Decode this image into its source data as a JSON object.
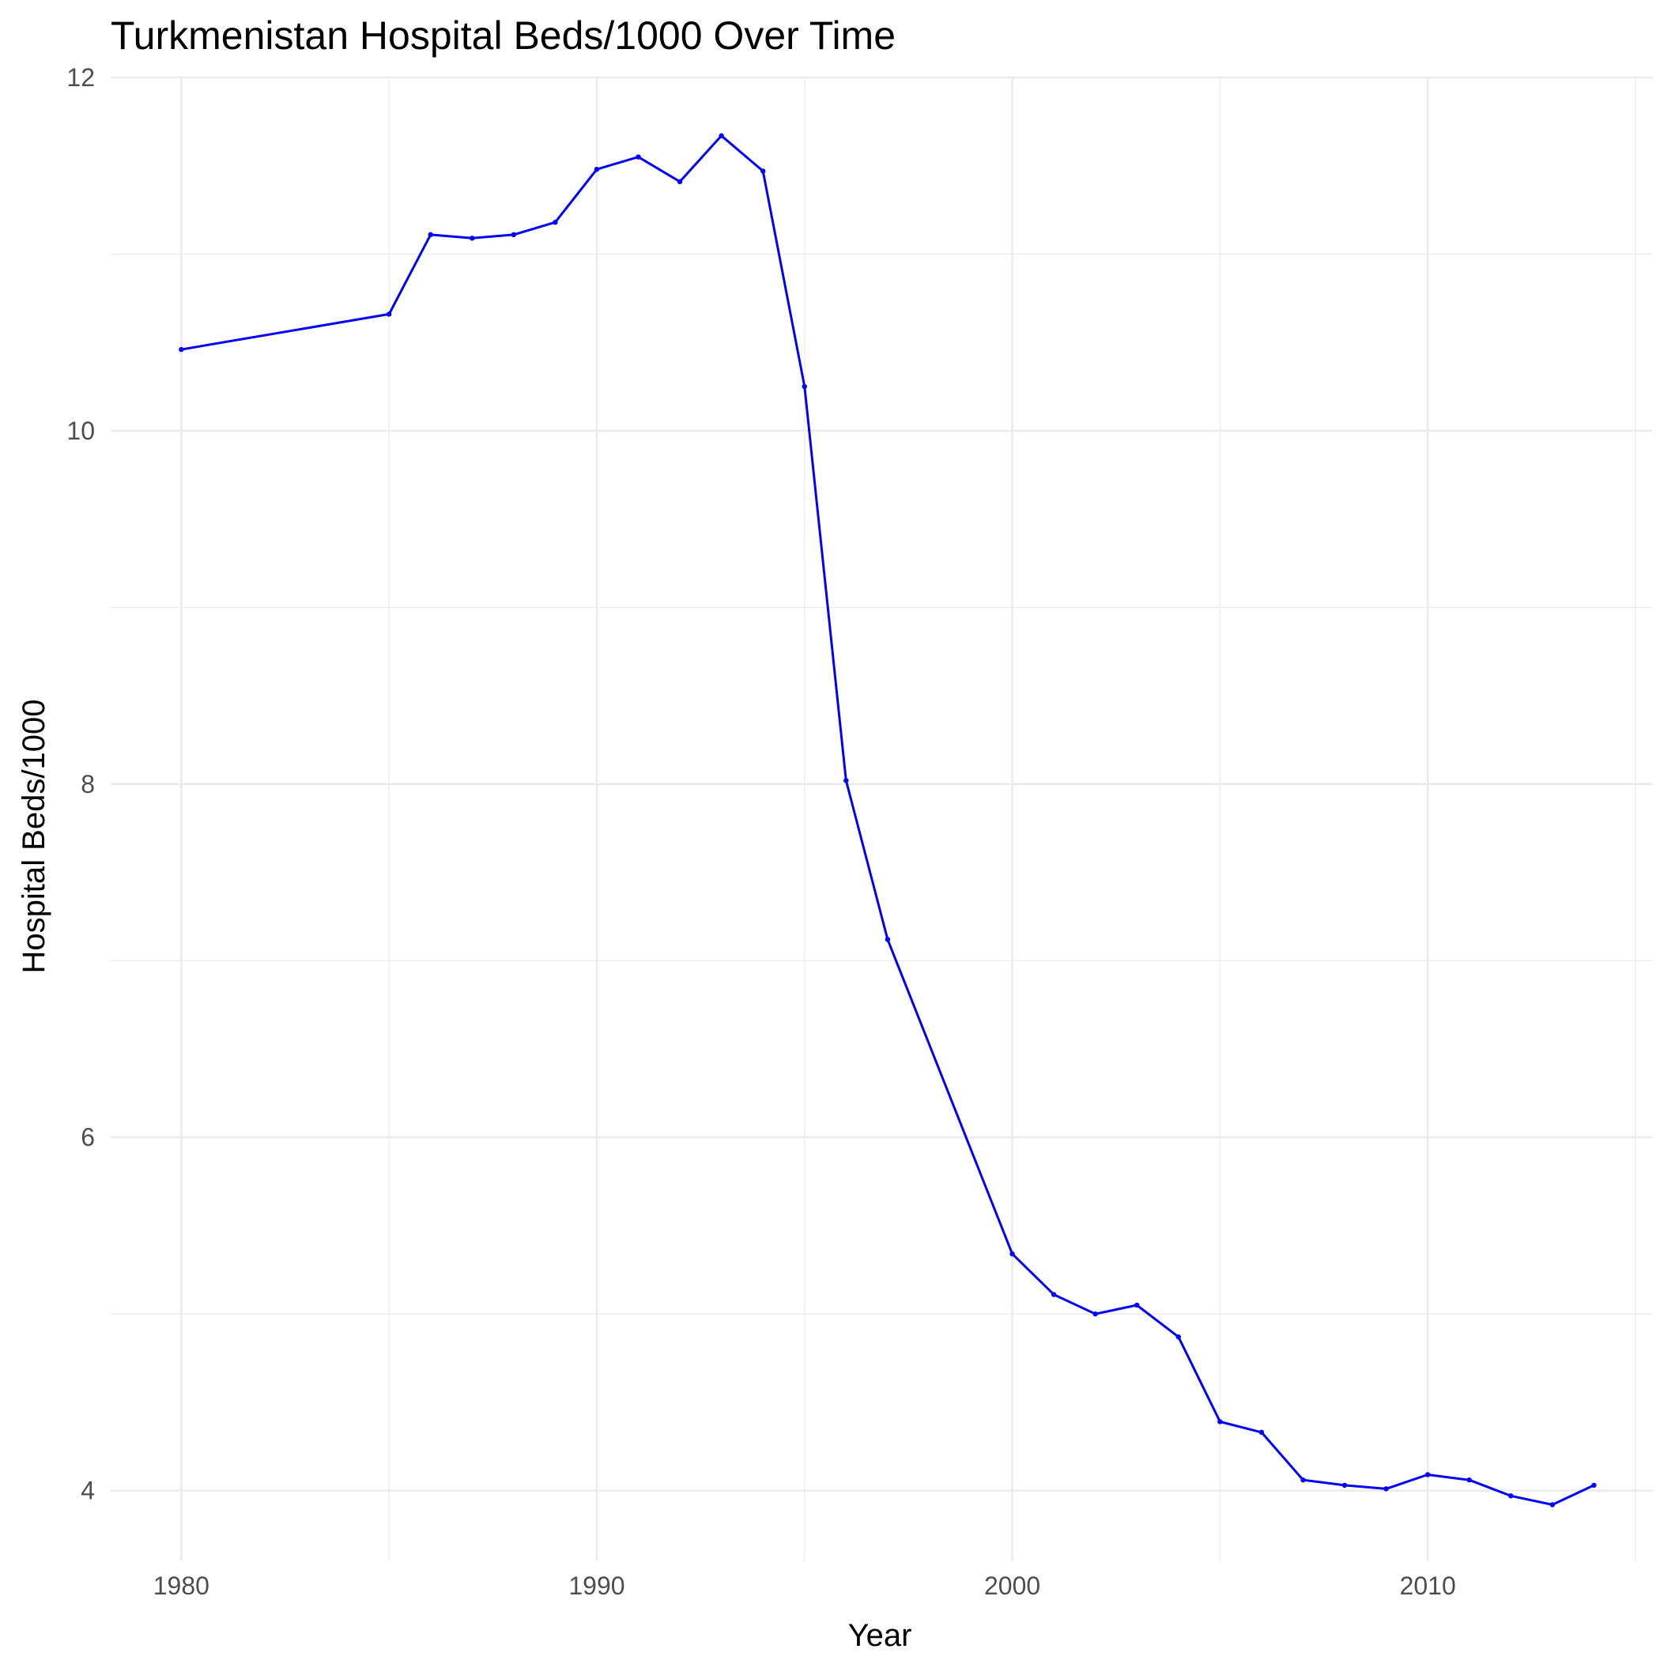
{
  "chart_data": {
    "type": "line",
    "title": "Turkmenistan Hospital Beds/1000 Over Time",
    "xlabel": "Year",
    "ylabel": "Hospital Beds/1000",
    "xlim": [
      1978.3,
      2015.4
    ],
    "ylim": [
      3.6,
      12.0
    ],
    "x_ticks": [
      1980,
      1990,
      2000,
      2010
    ],
    "x_tick_labels": [
      "1980",
      "1990",
      "2000",
      "2010"
    ],
    "x_minor_ticks": [
      1985,
      1995,
      2005,
      2015
    ],
    "y_ticks": [
      4,
      6,
      8,
      10,
      12
    ],
    "y_tick_labels": [
      "4",
      "6",
      "8",
      "10",
      "12"
    ],
    "y_minor_ticks": [
      5,
      7,
      9,
      11
    ],
    "grid": true,
    "legend": "none",
    "line_color": "#0000ff",
    "series": [
      {
        "x": [
          1980,
          1985,
          1986,
          1987,
          1988,
          1989,
          1990,
          1991,
          1992,
          1993,
          1994,
          1995,
          1996,
          1997,
          2000,
          2001,
          2002,
          2003,
          2004,
          2005,
          2006,
          2007,
          2008,
          2009,
          2010,
          2011,
          2012,
          2013,
          2014
        ],
        "y": [
          10.46,
          10.66,
          11.11,
          11.09,
          11.11,
          11.18,
          11.48,
          11.55,
          11.41,
          11.67,
          11.47,
          10.25,
          8.02,
          7.12,
          5.34,
          5.11,
          5.0,
          5.05,
          4.87,
          4.39,
          4.33,
          4.06,
          4.03,
          4.01,
          4.09,
          4.06,
          3.97,
          3.92,
          4.03
        ]
      }
    ]
  }
}
